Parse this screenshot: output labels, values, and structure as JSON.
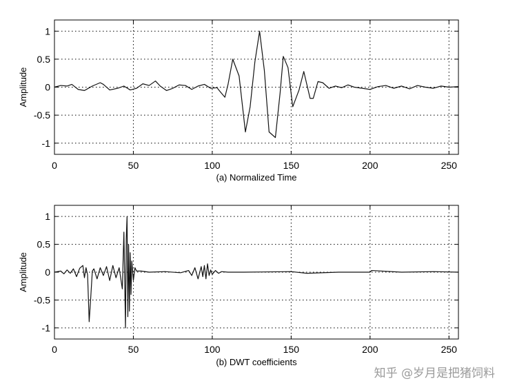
{
  "chart_data": [
    {
      "type": "line",
      "xlabel": "(a) Normalized Time",
      "ylabel": "Amplitude",
      "xlim": [
        0,
        256
      ],
      "ylim": [
        -1.2,
        1.2
      ],
      "xticks": [
        0,
        50,
        100,
        150,
        200,
        250
      ],
      "yticks": [
        1,
        0.5,
        0,
        -0.5,
        -1
      ],
      "yticklabels": [
        "1",
        "0.5",
        "0",
        "-0.5",
        "-1"
      ],
      "grid": true,
      "series": [
        {
          "color": "#111111",
          "x": [
            0,
            4,
            8,
            11,
            15,
            19,
            24,
            29,
            31,
            35,
            40,
            44,
            48,
            52,
            56,
            60,
            64,
            67,
            71,
            75,
            79,
            83,
            87,
            91,
            95,
            99,
            103,
            105,
            108,
            110,
            113,
            117,
            121,
            124,
            127,
            130,
            133,
            136,
            140,
            143,
            145,
            148,
            151,
            155,
            158,
            162,
            164,
            167,
            170,
            174,
            178,
            182,
            186,
            190,
            195,
            200,
            205,
            210,
            215,
            220,
            225,
            230,
            235,
            240,
            245,
            250,
            256
          ],
          "y": [
            0,
            0.03,
            0.02,
            0.05,
            -0.04,
            -0.06,
            0.02,
            0.08,
            0.05,
            -0.05,
            -0.02,
            0.02,
            -0.05,
            -0.02,
            0.06,
            0.03,
            0.11,
            0.02,
            -0.06,
            -0.02,
            0.04,
            0.03,
            -0.04,
            0.02,
            0.05,
            -0.02,
            -0.01,
            -0.08,
            -0.18,
            0.05,
            0.5,
            0.2,
            -0.8,
            -0.35,
            0.45,
            1.0,
            0.3,
            -0.8,
            -0.9,
            -0.1,
            0.55,
            0.35,
            -0.35,
            -0.05,
            0.28,
            -0.2,
            -0.2,
            0.1,
            0.08,
            -0.02,
            0.02,
            -0.01,
            0.04,
            0.0,
            -0.02,
            -0.04,
            0.01,
            0.03,
            -0.02,
            0.02,
            -0.03,
            0.03,
            0.0,
            -0.02,
            0.02,
            0.0,
            0.01
          ]
        }
      ]
    },
    {
      "type": "line",
      "xlabel": "(b) DWT coefficients",
      "ylabel": "Amplitude",
      "xlim": [
        0,
        256
      ],
      "ylim": [
        -1.2,
        1.2
      ],
      "xticks": [
        0,
        50,
        100,
        150,
        200,
        250
      ],
      "yticks": [
        1,
        0.5,
        0,
        -0.5,
        -1
      ],
      "yticklabels": [
        "1",
        "0.5",
        "0",
        "-0.5",
        "-1"
      ],
      "grid": true,
      "series": [
        {
          "color": "#111111",
          "x": [
            0,
            4,
            6,
            8,
            10,
            12,
            14,
            16,
            18,
            19,
            20,
            21,
            22,
            23,
            24,
            25,
            27,
            29,
            31,
            33,
            35,
            37,
            39,
            41,
            43,
            44,
            45,
            45.5,
            46,
            46.5,
            47,
            47.5,
            48,
            48.5,
            49,
            50,
            51,
            52,
            55,
            60,
            70,
            80,
            85,
            87,
            89,
            91,
            93,
            94,
            95,
            96,
            97,
            98,
            99,
            100,
            102,
            104,
            106,
            110,
            120,
            150,
            160,
            180,
            200,
            201,
            220,
            240,
            256
          ],
          "y": [
            0,
            0.02,
            -0.03,
            0.04,
            -0.02,
            0.06,
            -0.08,
            0.07,
            0.12,
            -0.1,
            0.08,
            -0.05,
            -0.89,
            -0.45,
            0.02,
            0.06,
            -0.12,
            0.08,
            -0.06,
            0.1,
            -0.15,
            0.12,
            -0.1,
            0.08,
            -0.3,
            0.72,
            -1.0,
            0.6,
            1.0,
            -0.8,
            0.5,
            -0.7,
            0.35,
            -0.4,
            0.2,
            -0.15,
            0.08,
            0.02,
            0.02,
            0.0,
            0.01,
            -0.01,
            0.03,
            -0.06,
            0.08,
            -0.12,
            0.1,
            -0.08,
            0.12,
            -0.12,
            0.15,
            -0.06,
            0.04,
            -0.04,
            0.03,
            -0.02,
            0.01,
            0.0,
            0.0,
            0.01,
            -0.02,
            0.0,
            0.0,
            0.03,
            0.0,
            0.01,
            0.0
          ]
        }
      ]
    }
  ],
  "watermark": "知乎 @岁月是把猪饲料"
}
